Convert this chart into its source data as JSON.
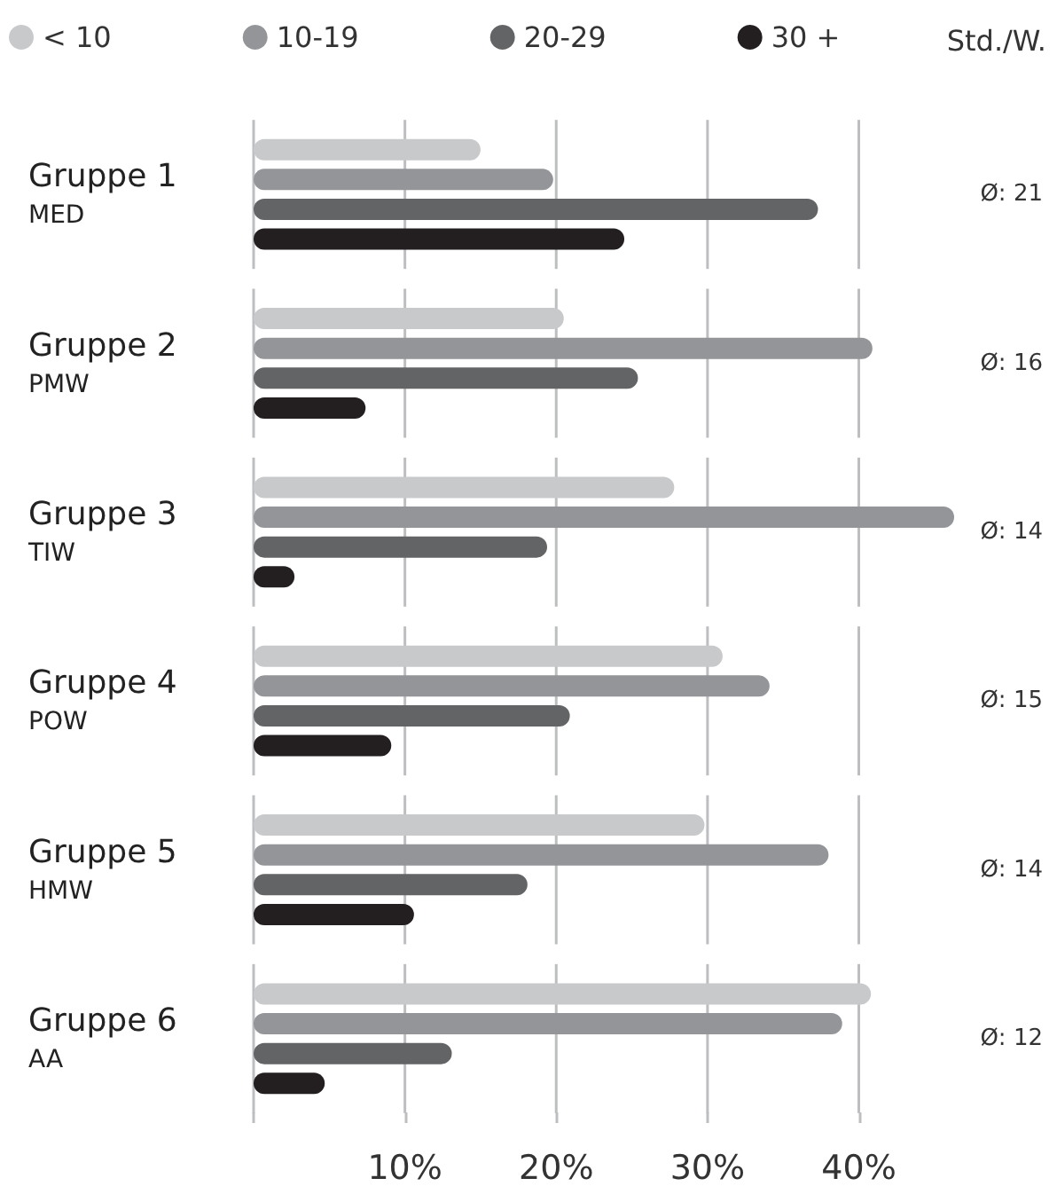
{
  "chart_data": {
    "type": "bar",
    "orientation": "horizontal",
    "categories": [
      "Gruppe 1\nMED",
      "Gruppe 2\nPMW",
      "Gruppe 3\nTIW",
      "Gruppe 4\nPOW",
      "Gruppe 5\nHMW",
      "Gruppe 6\nAA"
    ],
    "series": [
      {
        "name": "< 10",
        "color": "#c8c9cb",
        "values": [
          15.0,
          20.5,
          27.8,
          31.0,
          29.8,
          40.8
        ]
      },
      {
        "name": "10-19",
        "color": "#939598",
        "values": [
          19.8,
          40.9,
          46.3,
          34.1,
          38.0,
          38.9
        ]
      },
      {
        "name": "20-29",
        "color": "#636466",
        "values": [
          37.3,
          25.4,
          19.4,
          20.9,
          18.1,
          13.1
        ]
      },
      {
        "name": "30 +",
        "color": "#231f20",
        "values": [
          24.5,
          7.4,
          2.7,
          9.1,
          10.6,
          4.7
        ]
      }
    ],
    "xticks": [
      {
        "value": 0,
        "label": null
      },
      {
        "value": 10,
        "label": "10%"
      },
      {
        "value": 20,
        "label": "20%"
      },
      {
        "value": 30,
        "label": "30%"
      },
      {
        "value": 40,
        "label": "40%"
      }
    ],
    "xlim": [
      0,
      46.3
    ],
    "grid": "x",
    "legend": "top",
    "marker": "circle",
    "annotations": [
      "Std./W.",
      "Ø: 21",
      "Ø: 16",
      "Ø: 14",
      "Ø: 15",
      "Ø: 14",
      "Ø: 12"
    ]
  }
}
